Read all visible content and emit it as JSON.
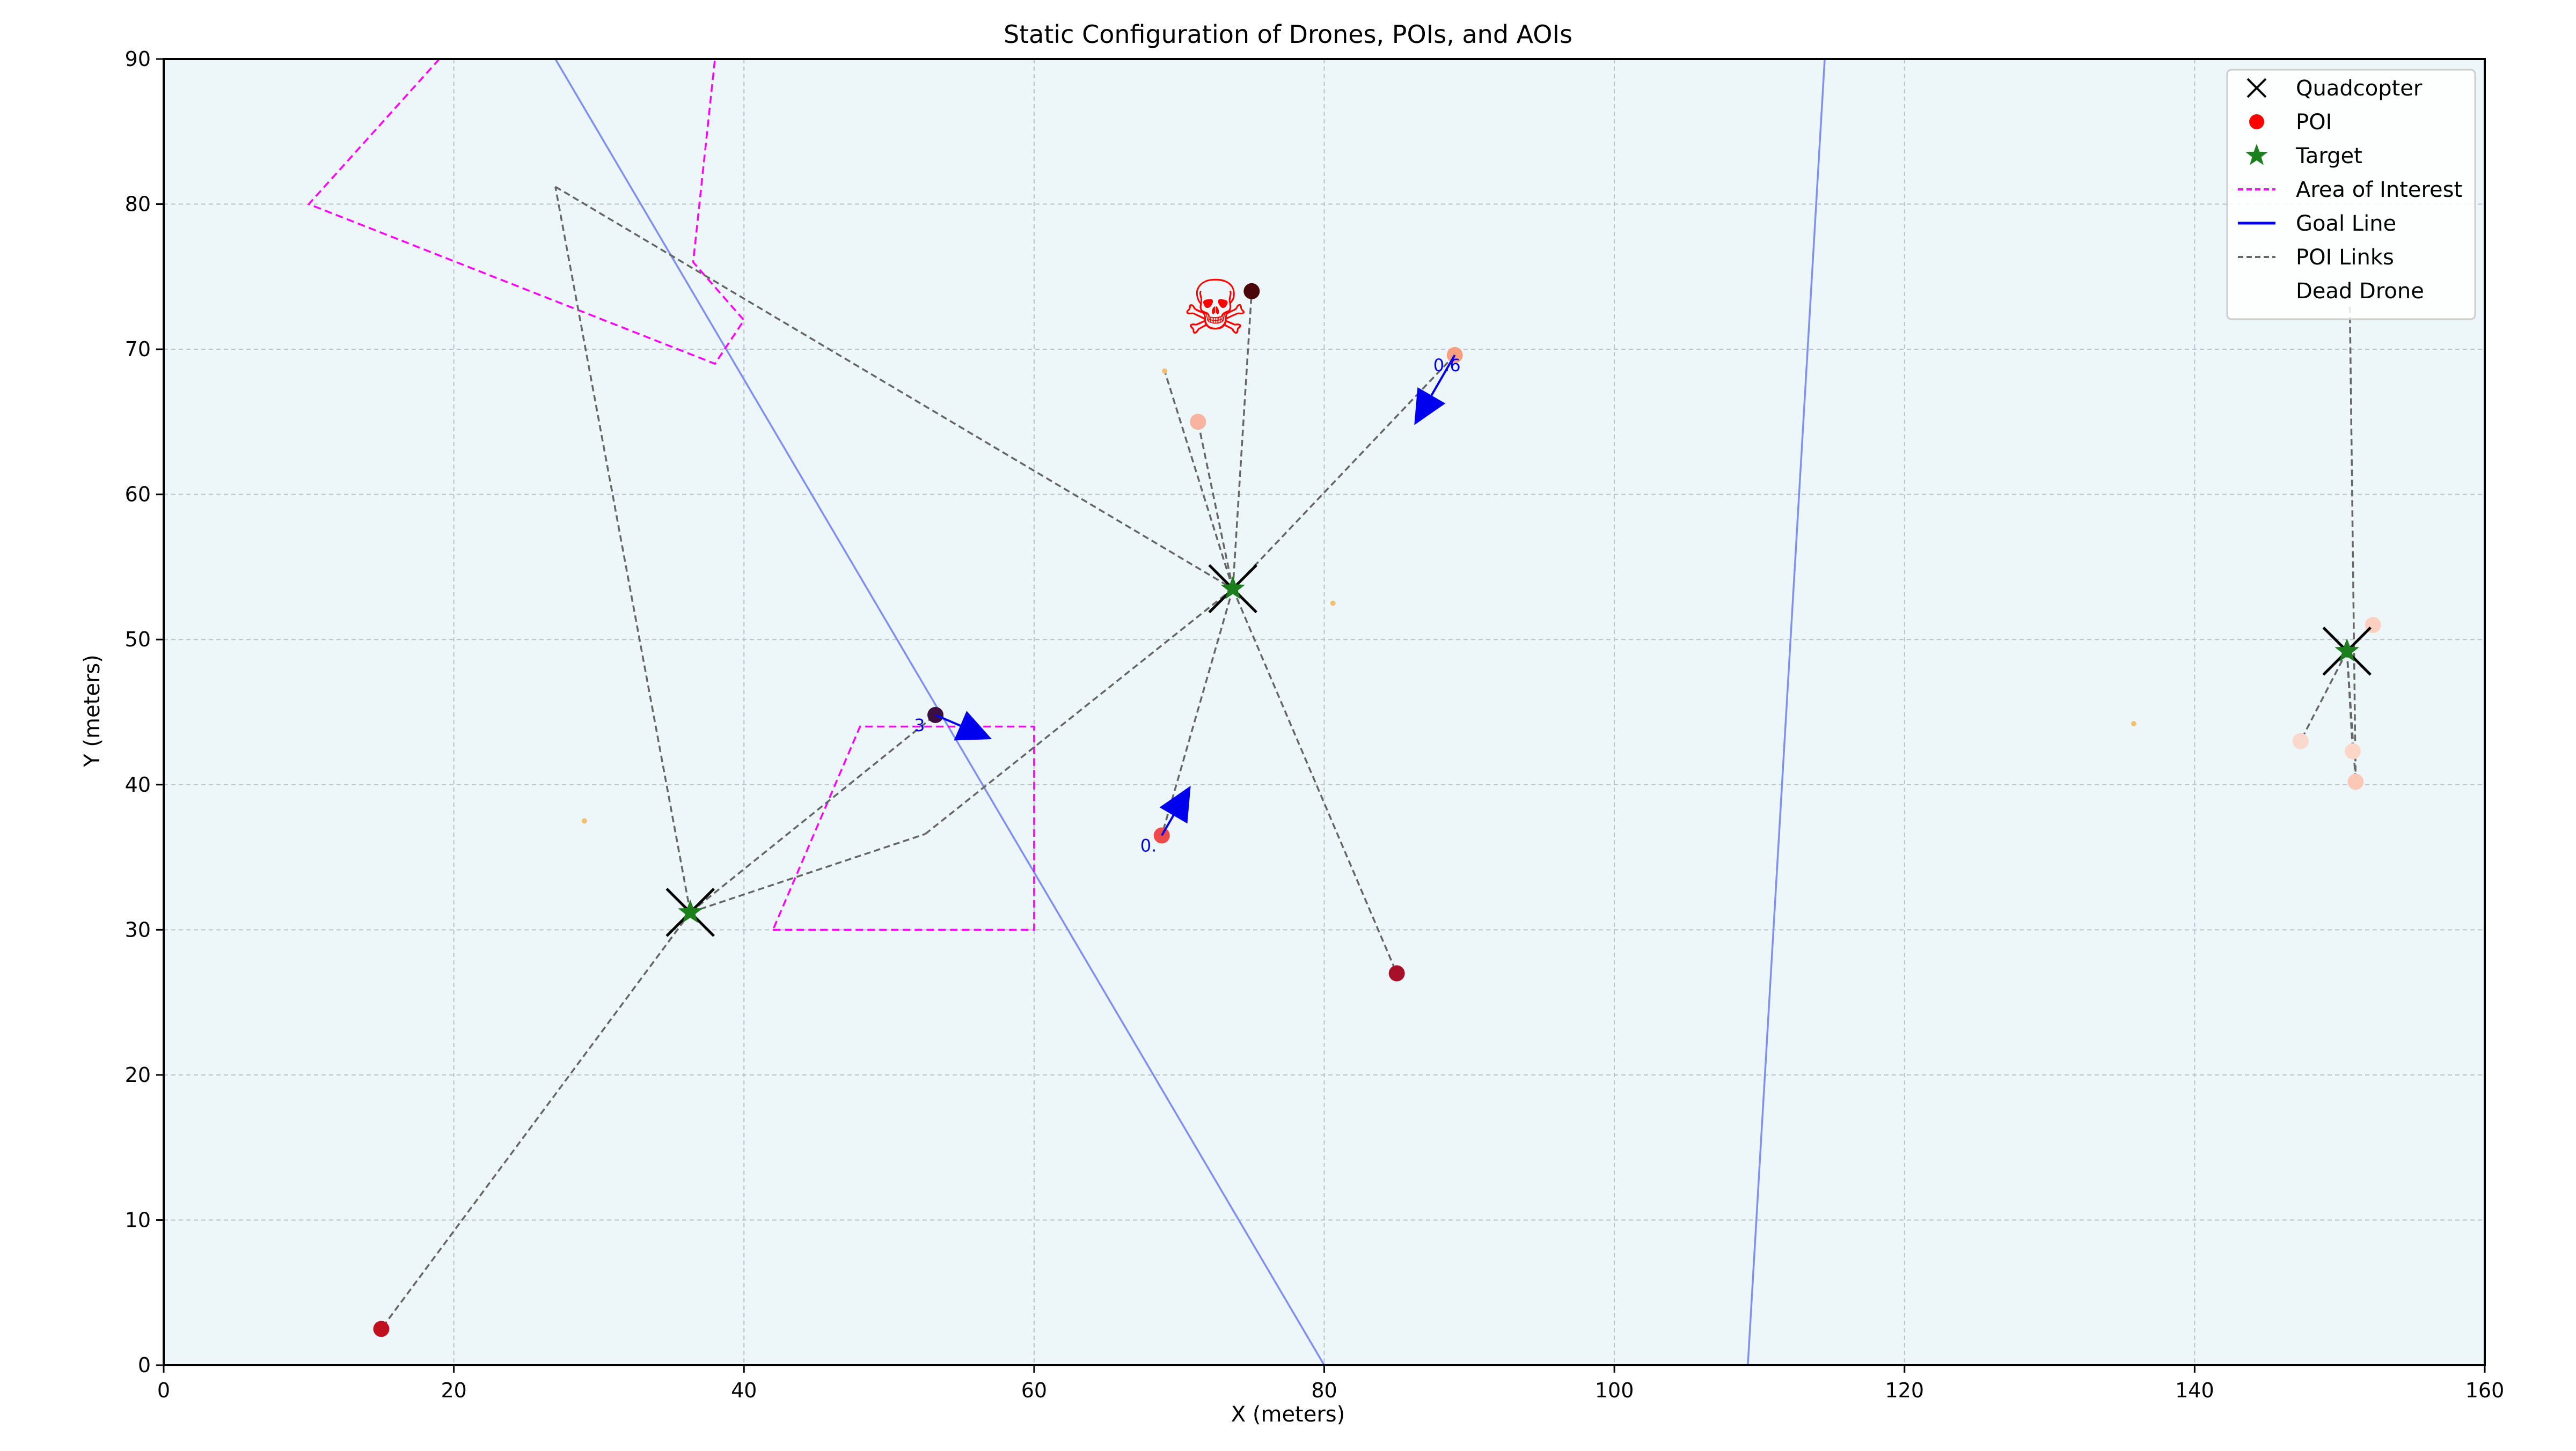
{
  "chart_data": {
    "type": "scatter",
    "title": "Static Configuration of Drones, POIs, and AOIs",
    "xlabel": "X (meters)",
    "ylabel": "Y (meters)",
    "xlim": [
      0,
      160
    ],
    "ylim": [
      0,
      90
    ],
    "xticks": [
      0,
      20,
      40,
      60,
      80,
      100,
      120,
      140,
      160
    ],
    "yticks": [
      0,
      10,
      20,
      30,
      40,
      50,
      60,
      70,
      80,
      90
    ],
    "grid": true,
    "legend_position": "top-right",
    "colors": {
      "background": "#edf6f9",
      "grid": "#b8c4cc",
      "quadcopter": "#000000",
      "target": "#1b7f1b",
      "aoi": "#ff00ff",
      "goal_line": "#8090f0",
      "poi_link": "#666666",
      "vector": "#0000ee",
      "dead_drone": "#ff0000"
    },
    "legend": [
      {
        "label": "Quadcopter",
        "marker": "x",
        "color": "#000000"
      },
      {
        "label": "POI",
        "marker": "circle",
        "color": "#ff0000"
      },
      {
        "label": "Target",
        "marker": "star",
        "color": "#1b7f1b"
      },
      {
        "label": "Area of Interest",
        "marker": "dashed-line",
        "color": "#ff00ff"
      },
      {
        "label": "Goal Line",
        "marker": "line",
        "color": "#0000ee"
      },
      {
        "label": "POI Links",
        "marker": "dashed-line",
        "color": "#666666"
      },
      {
        "label": "Dead Drone",
        "marker": "none",
        "color": "#ffffff"
      }
    ],
    "quadcopters": [
      {
        "x": 36.3,
        "y": 31.2
      },
      {
        "x": 73.7,
        "y": 53.5
      },
      {
        "x": 150.5,
        "y": 49.2
      }
    ],
    "targets": [
      {
        "x": 36.3,
        "y": 31.2
      },
      {
        "x": 73.7,
        "y": 53.5
      },
      {
        "x": 150.5,
        "y": 49.2
      }
    ],
    "pois": [
      {
        "x": 15.0,
        "y": 2.5,
        "color": "#c01020"
      },
      {
        "x": 53.2,
        "y": 44.8,
        "color": "#3b0f3f"
      },
      {
        "x": 75.0,
        "y": 74.0,
        "color": "#4a0608"
      },
      {
        "x": 71.3,
        "y": 65.0,
        "color": "#f8b4a0"
      },
      {
        "x": 89.0,
        "y": 69.6,
        "color": "#f6a080"
      },
      {
        "x": 68.8,
        "y": 36.5,
        "color": "#ee4a4a"
      },
      {
        "x": 85.0,
        "y": 27.0,
        "color": "#a8102a"
      },
      {
        "x": 152.3,
        "y": 51.0,
        "color": "#fcd0c0"
      },
      {
        "x": 147.3,
        "y": 43.0,
        "color": "#fbd8cc"
      },
      {
        "x": 150.9,
        "y": 42.3,
        "color": "#fcd6c6"
      },
      {
        "x": 151.1,
        "y": 40.2,
        "color": "#fbc8b6"
      }
    ],
    "faint_pois": [
      {
        "x": 29.0,
        "y": 37.5
      },
      {
        "x": 80.6,
        "y": 52.5
      },
      {
        "x": 135.8,
        "y": 44.2
      },
      {
        "x": 69.0,
        "y": 68.5
      }
    ],
    "poi_links": [
      [
        [
          36.3,
          31.2
        ],
        [
          15.0,
          2.5
        ]
      ],
      [
        [
          36.3,
          31.2
        ],
        [
          27.0,
          81.2
        ]
      ],
      [
        [
          27.0,
          81.2
        ],
        [
          73.7,
          53.5
        ]
      ],
      [
        [
          36.3,
          31.2
        ],
        [
          53.2,
          44.8
        ]
      ],
      [
        [
          36.3,
          31.2
        ],
        [
          52.5,
          36.6
        ]
      ],
      [
        [
          52.5,
          36.6
        ],
        [
          73.7,
          53.5
        ]
      ],
      [
        [
          73.7,
          53.5
        ],
        [
          75.0,
          74.0
        ]
      ],
      [
        [
          73.7,
          53.5
        ],
        [
          71.3,
          65.0
        ]
      ],
      [
        [
          73.7,
          53.5
        ],
        [
          69.0,
          68.5
        ]
      ],
      [
        [
          73.7,
          53.5
        ],
        [
          89.0,
          69.6
        ]
      ],
      [
        [
          73.7,
          53.5
        ],
        [
          68.8,
          36.5
        ]
      ],
      [
        [
          73.7,
          53.5
        ],
        [
          85.0,
          27.0
        ]
      ],
      [
        [
          150.5,
          49.2
        ],
        [
          152.3,
          51.0
        ]
      ],
      [
        [
          150.5,
          49.2
        ],
        [
          147.3,
          43.0
        ]
      ],
      [
        [
          150.5,
          49.2
        ],
        [
          150.9,
          42.3
        ]
      ],
      [
        [
          150.5,
          49.2
        ],
        [
          151.1,
          40.2
        ]
      ],
      [
        [
          151.1,
          40.2
        ],
        [
          150.7,
          73.0
        ]
      ]
    ],
    "areas_of_interest": [
      [
        [
          42,
          30
        ],
        [
          60,
          30
        ],
        [
          60,
          44
        ],
        [
          48,
          44
        ],
        [
          42,
          30
        ]
      ],
      [
        [
          19.0,
          90.0
        ],
        [
          10.0,
          80.0
        ],
        [
          38.0,
          69.0
        ],
        [
          40.0,
          72.0
        ],
        [
          36.5,
          76.0
        ],
        [
          38.0,
          90.0
        ]
      ]
    ],
    "goal_lines": [
      [
        [
          27.0,
          90.0
        ],
        [
          80.0,
          0.0
        ]
      ],
      [
        [
          109.2,
          0.0
        ],
        [
          114.5,
          90.0
        ]
      ]
    ],
    "velocity_vectors": [
      {
        "x0": 89.0,
        "y0": 69.6,
        "x1": 86.8,
        "y1": 65.8,
        "label": "0.6"
      },
      {
        "x0": 53.2,
        "y0": 44.8,
        "x1": 56.0,
        "y1": 43.6,
        "label": "3"
      },
      {
        "x0": 68.8,
        "y0": 36.5,
        "x1": 70.2,
        "y1": 38.9,
        "label": "0."
      }
    ],
    "dead_drone": {
      "x": 72.5,
      "y": 72.5,
      "symbol": "☠"
    }
  }
}
